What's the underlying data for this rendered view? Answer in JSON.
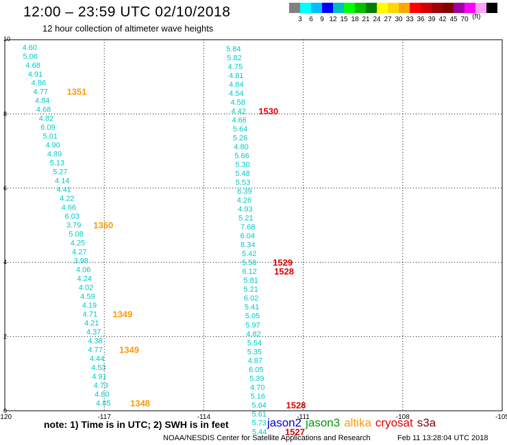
{
  "header": {
    "title": "12:00 – 23:59 UTC 02/10/2018",
    "subtitle": "12 hour collection of altimeter wave heights"
  },
  "colorbar": {
    "colors": [
      "#808080",
      "#00ffff",
      "#00bfff",
      "#0000ff",
      "#00bfbf",
      "#00ff00",
      "#00c000",
      "#008000",
      "#ffff00",
      "#ffd700",
      "#ffa500",
      "#ff0000",
      "#d00000",
      "#a00000",
      "#800000",
      "#a000a0",
      "#ff00ff",
      "#ffa0ff",
      "#000000"
    ],
    "labels": [
      "3",
      "6",
      "9",
      "12",
      "15",
      "18",
      "21",
      "24",
      "27",
      "30",
      "33",
      "36",
      "39",
      "42",
      "45",
      "70"
    ],
    "units": "(ft)"
  },
  "note": "note:  1) Time is in UTC;  2) SWH is in feet",
  "legend": [
    {
      "name": "jason2",
      "color": "#0000cc"
    },
    {
      "name": "jason3",
      "color": "#009900"
    },
    {
      "name": "altika",
      "color": "#ff9900"
    },
    {
      "name": "cryosat",
      "color": "#dd0000"
    },
    {
      "name": "s3a",
      "color": "#800000"
    }
  ],
  "credit": "NOAA/NESDIS Center for Satellite Applications and Research",
  "timestamp": "Feb 11 13:28:04 UTC 2018",
  "chart_data": {
    "type": "scatter",
    "xlim": [
      -120,
      -105
    ],
    "ylim": [
      0,
      10
    ],
    "x_ticks": [
      "-120",
      "-117",
      "-114",
      "-111",
      "-108",
      "-105"
    ],
    "y_ticks": [
      "0",
      "2",
      "4",
      "6",
      "8",
      "10"
    ],
    "grid": true,
    "height_color": "#00c8c8",
    "tracks": [
      {
        "name": "track-1",
        "points": [
          [
            -119.25,
            9.8,
            "4.60"
          ],
          [
            -119.23,
            9.56,
            "5.06"
          ],
          [
            -119.15,
            9.32,
            "4.68"
          ],
          [
            -119.08,
            9.08,
            "4.91"
          ],
          [
            -118.98,
            8.85,
            "4.86"
          ],
          [
            -118.92,
            8.61,
            "4.77"
          ],
          [
            -118.87,
            8.37,
            "4.84"
          ],
          [
            -118.83,
            8.13,
            "4.68"
          ],
          [
            -118.75,
            7.89,
            "4.82"
          ],
          [
            -118.7,
            7.65,
            "6.09"
          ],
          [
            -118.63,
            7.41,
            "5.01"
          ],
          [
            -118.55,
            7.17,
            "4.90"
          ],
          [
            -118.5,
            6.93,
            "4.89"
          ],
          [
            -118.42,
            6.69,
            "5.13"
          ],
          [
            -118.33,
            6.45,
            "5.27"
          ],
          [
            -118.27,
            6.21,
            "4.14"
          ],
          [
            -118.22,
            5.97,
            "4.41"
          ],
          [
            -118.12,
            5.73,
            "4.22"
          ],
          [
            -118.07,
            5.49,
            "4.66"
          ],
          [
            -117.97,
            5.25,
            "6.03"
          ],
          [
            -117.92,
            5.01,
            "3.79"
          ],
          [
            -117.85,
            4.77,
            "5.08"
          ],
          [
            -117.8,
            4.53,
            "4.25"
          ],
          [
            -117.75,
            4.29,
            "4.27"
          ],
          [
            -117.7,
            4.05,
            "3.98"
          ],
          [
            -117.63,
            3.81,
            "4.06"
          ],
          [
            -117.6,
            3.57,
            "4.24"
          ],
          [
            -117.55,
            3.33,
            "4.02"
          ],
          [
            -117.5,
            3.09,
            "4.59"
          ],
          [
            -117.45,
            2.85,
            "4.19"
          ],
          [
            -117.43,
            2.61,
            "4.71"
          ],
          [
            -117.38,
            2.37,
            "4.21"
          ],
          [
            -117.32,
            2.13,
            "4.37"
          ],
          [
            -117.27,
            1.89,
            "4.38"
          ],
          [
            -117.27,
            1.65,
            "4.77"
          ],
          [
            -117.22,
            1.41,
            "4.44"
          ],
          [
            -117.17,
            1.17,
            "4.53"
          ],
          [
            -117.15,
            0.93,
            "4.91"
          ],
          [
            -117.1,
            0.69,
            "4.73"
          ],
          [
            -117.07,
            0.45,
            "4.80"
          ],
          [
            -117.03,
            0.21,
            "4.85"
          ]
        ]
      },
      {
        "name": "track-2",
        "points": [
          [
            -113.1,
            9.76,
            "5.84"
          ],
          [
            -113.08,
            9.52,
            "5.82"
          ],
          [
            -113.05,
            9.28,
            "4.75"
          ],
          [
            -113.02,
            9.04,
            "4.81"
          ],
          [
            -113.02,
            8.8,
            "4.64"
          ],
          [
            -113.02,
            8.56,
            "4.54"
          ],
          [
            -112.97,
            8.32,
            "4.58"
          ],
          [
            -112.95,
            8.08,
            "4.42"
          ],
          [
            -112.93,
            7.84,
            "4.66"
          ],
          [
            -112.9,
            7.6,
            "5.64"
          ],
          [
            -112.9,
            7.36,
            "5.26"
          ],
          [
            -112.87,
            7.12,
            "4.80"
          ],
          [
            -112.85,
            6.88,
            "5.66"
          ],
          [
            -112.83,
            6.64,
            "5.30"
          ],
          [
            -112.83,
            6.4,
            "5.48"
          ],
          [
            -112.82,
            6.16,
            "5.53"
          ],
          [
            -112.77,
            5.92,
            "6.39"
          ],
          [
            -112.78,
            5.68,
            "4.26"
          ],
          [
            -112.75,
            5.44,
            "4.93"
          ],
          [
            -112.73,
            5.2,
            "5.21"
          ],
          [
            -112.67,
            4.96,
            "7.68"
          ],
          [
            -112.68,
            4.72,
            "6.04"
          ],
          [
            -112.67,
            4.48,
            "8.34"
          ],
          [
            -112.63,
            4.24,
            "5.42"
          ],
          [
            -112.63,
            4.0,
            "5.58"
          ],
          [
            -112.62,
            3.76,
            "6.12"
          ],
          [
            -112.58,
            3.52,
            "5.81"
          ],
          [
            -112.58,
            3.28,
            "5.21"
          ],
          [
            -112.57,
            3.04,
            "6.02"
          ],
          [
            -112.55,
            2.8,
            "5.41"
          ],
          [
            -112.53,
            2.56,
            "5.05"
          ],
          [
            -112.52,
            2.32,
            "5.97"
          ],
          [
            -112.5,
            2.08,
            "4.82"
          ],
          [
            -112.47,
            1.84,
            "5.54"
          ],
          [
            -112.47,
            1.6,
            "5.35"
          ],
          [
            -112.45,
            1.36,
            "4.87"
          ],
          [
            -112.42,
            1.12,
            "6.05"
          ],
          [
            -112.4,
            0.88,
            "5.39"
          ],
          [
            -112.38,
            0.64,
            "4.70"
          ],
          [
            -112.37,
            0.4,
            "5.16"
          ],
          [
            -112.33,
            0.16,
            "5.64"
          ],
          [
            -112.33,
            -0.08,
            "5.61"
          ],
          [
            -112.33,
            -0.32,
            "5.73"
          ],
          [
            -112.32,
            -0.56,
            "5.44"
          ]
        ]
      }
    ],
    "time_labels": [
      {
        "x": -117.83,
        "y": 8.61,
        "text": "1351",
        "satellite": "altika"
      },
      {
        "x": -117.03,
        "y": 5.01,
        "text": "1350",
        "satellite": "altika"
      },
      {
        "x": -116.45,
        "y": 2.61,
        "text": "1349",
        "satellite": "altika"
      },
      {
        "x": -116.25,
        "y": 1.65,
        "text": "1349",
        "satellite": "altika"
      },
      {
        "x": -115.92,
        "y": 0.21,
        "text": "1348",
        "satellite": "altika"
      },
      {
        "x": -112.05,
        "y": 8.08,
        "text": "1530",
        "satellite": "cryosat"
      },
      {
        "x": -111.62,
        "y": 4.0,
        "text": "1529",
        "satellite": "cryosat"
      },
      {
        "x": -111.58,
        "y": 3.76,
        "text": "1528",
        "satellite": "cryosat"
      },
      {
        "x": -111.22,
        "y": 0.16,
        "text": "1528",
        "satellite": "cryosat"
      },
      {
        "x": -111.25,
        "y": -0.56,
        "text": "1527",
        "satellite": "cryosat"
      }
    ]
  }
}
